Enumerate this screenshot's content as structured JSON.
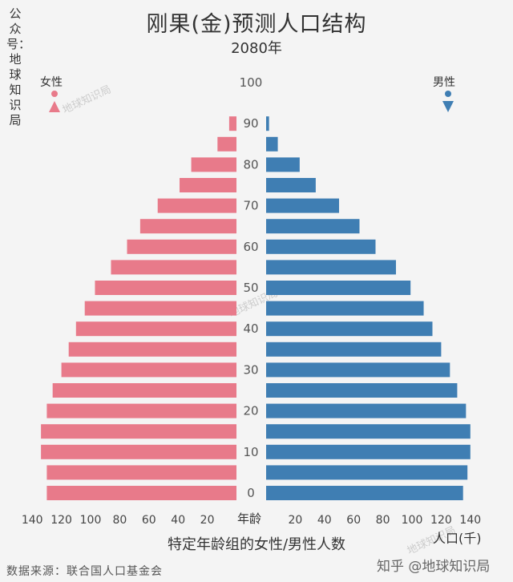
{
  "title": "刚果(金)预测人口结构",
  "subtitle": "2080年",
  "side_label": "公众号：地球知识局",
  "female_label": "女性",
  "male_label": "男性",
  "age_axis_title": "年龄",
  "xlabel": "特定年龄组的女性/男性人数",
  "unit_label": "人口(千)",
  "source": "数据来源：联合国人口基金会",
  "zhihu": "知乎 @地球知识局",
  "watermark": "地球知识局",
  "colors": {
    "female": "#e87a8a",
    "male": "#3f7eb3"
  },
  "chart_data": {
    "type": "bar",
    "orientation": "horizontal-pyramid",
    "age_groups": [
      "0-4",
      "5-9",
      "10-14",
      "15-19",
      "20-24",
      "25-29",
      "30-34",
      "35-39",
      "40-44",
      "45-49",
      "50-54",
      "55-59",
      "60-64",
      "65-69",
      "70-74",
      "75-79",
      "80-84",
      "85-89",
      "90-94",
      "95-99"
    ],
    "age_tick_labels": [
      "0",
      "10",
      "20",
      "30",
      "40",
      "50",
      "60",
      "70",
      "80",
      "90",
      "100"
    ],
    "x_tick_labels_left": [
      "140",
      "120",
      "100",
      "80",
      "60",
      "40",
      "20"
    ],
    "x_tick_labels_right": [
      "20",
      "40",
      "60",
      "80",
      "100",
      "120",
      "140"
    ],
    "xlim": [
      0,
      140
    ],
    "series": [
      {
        "name": "女性",
        "values": [
          130,
          130,
          134,
          134,
          130,
          126,
          120,
          115,
          110,
          104,
          97,
          86,
          75,
          66,
          54,
          39,
          31,
          13,
          5,
          0
        ]
      },
      {
        "name": "男性",
        "values": [
          135,
          138,
          140,
          140,
          137,
          131,
          126,
          120,
          114,
          108,
          99,
          89,
          75,
          64,
          50,
          34,
          23,
          8,
          2,
          0
        ]
      }
    ]
  }
}
